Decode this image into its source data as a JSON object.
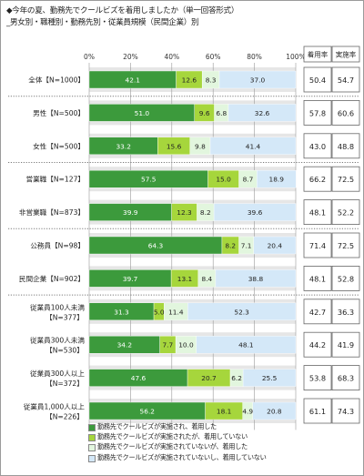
{
  "title": {
    "line1": "◆今年の夏、勤務先でクールビズを着用しましたか（単一回答形式）",
    "line2": "_男女別・職種別・勤務先別・従業員規模（民間企業）別"
  },
  "columns": {
    "wear_rate": "着用率",
    "impl_rate": "実施率"
  },
  "colors": {
    "s1": "#3c9a3c",
    "s2": "#a6d63c",
    "s3": "#e2f6de",
    "s4": "#d4e8f8",
    "row_bg": "#e6e6e6",
    "dotted": "#7a7a7a"
  },
  "chart_data": {
    "type": "bar",
    "orientation": "horizontal",
    "stacked": true,
    "xlim": [
      0,
      100
    ],
    "xticks": [
      "0%",
      "20%",
      "40%",
      "60%",
      "80%",
      "100%"
    ],
    "categories": [
      [
        "全体【N=1000】"
      ],
      [
        "男性【N=500】"
      ],
      [
        "女性【N=500】"
      ],
      [
        "営業職【N=127】"
      ],
      [
        "非営業職【N=873】"
      ],
      [
        "公務員【N=98】"
      ],
      [
        "民間企業【N=902】"
      ],
      [
        "従業員100人未満",
        "【N=377】"
      ],
      [
        "従業員300人未満",
        "【N=530】"
      ],
      [
        "従業員300人以上",
        "【N=372】"
      ],
      [
        "従業員1,000人以上",
        "【N=226】"
      ]
    ],
    "series": [
      {
        "name": "勤務先でクールビズが実施され、着用した",
        "values": [
          42.1,
          51.0,
          33.2,
          57.5,
          39.9,
          64.3,
          39.7,
          31.3,
          34.2,
          47.6,
          56.2
        ]
      },
      {
        "name": "勤務先でクールビズが実施されたが、着用していない",
        "values": [
          12.6,
          9.6,
          15.6,
          15.0,
          12.3,
          8.2,
          13.1,
          5.0,
          7.7,
          20.7,
          18.1
        ]
      },
      {
        "name": "勤務先でクールビズが実施されていないが、着用した",
        "values": [
          8.3,
          6.8,
          9.8,
          8.7,
          8.2,
          7.1,
          8.4,
          11.4,
          10.0,
          6.2,
          4.9
        ]
      },
      {
        "name": "勤務先でクールビズが実施されていないし、着用していない",
        "values": [
          37.0,
          32.6,
          41.4,
          18.9,
          39.6,
          20.4,
          38.8,
          52.3,
          48.1,
          25.5,
          20.8
        ]
      }
    ],
    "wear_rate": [
      50.4,
      57.8,
      43.0,
      66.2,
      48.1,
      71.4,
      48.1,
      42.7,
      44.2,
      53.8,
      61.1
    ],
    "impl_rate": [
      54.7,
      60.6,
      48.8,
      72.5,
      52.2,
      72.5,
      52.8,
      36.3,
      41.9,
      68.3,
      74.3
    ],
    "separators_after": [
      0,
      2,
      4,
      6
    ]
  }
}
